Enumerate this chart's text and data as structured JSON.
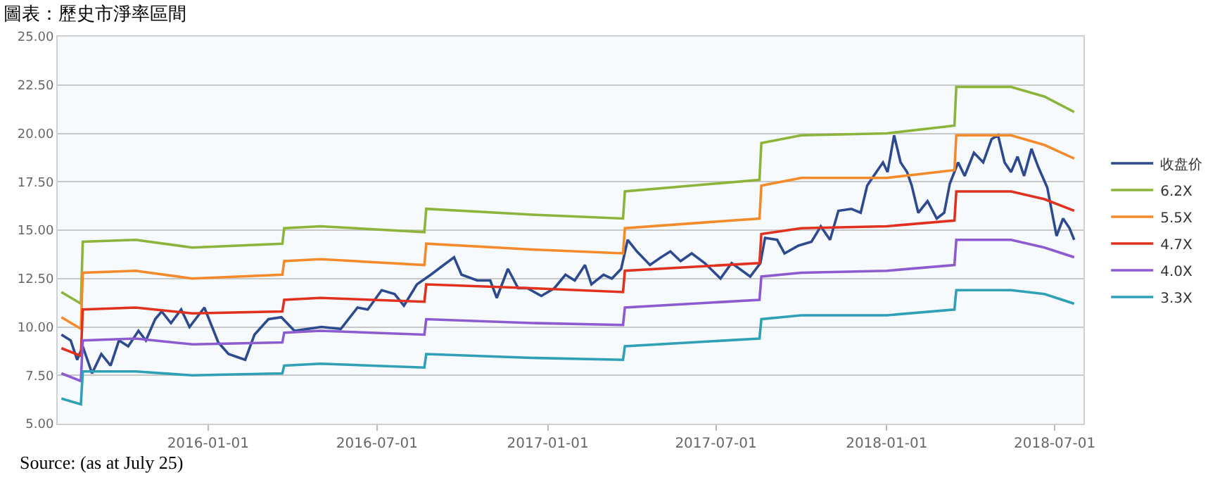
{
  "chart_data": {
    "type": "line",
    "title": "圖表：歷史市淨率區間",
    "xlim": [
      "2015-07-23",
      "2018-08-01"
    ],
    "xticks": [
      {
        "value": "2016-01-01",
        "label": "2016-01-01"
      },
      {
        "value": "2016-07-01",
        "label": "2016-07-01"
      },
      {
        "value": "2017-01-01",
        "label": "2017-01-01"
      },
      {
        "value": "2017-07-01",
        "label": "2017-07-01"
      },
      {
        "value": "2018-01-01",
        "label": "2018-01-01"
      },
      {
        "value": "2018-07-01",
        "label": "2018-07-01"
      }
    ],
    "ylim": [
      5,
      25
    ],
    "yticks": [
      {
        "value": 5,
        "label": "5.00"
      },
      {
        "value": 7.5,
        "label": "7.50"
      },
      {
        "value": 10,
        "label": "10.00"
      },
      {
        "value": 12.5,
        "label": "12.50"
      },
      {
        "value": 15,
        "label": "15.00"
      },
      {
        "value": 17.5,
        "label": "17.50"
      },
      {
        "value": 20,
        "label": "20.00"
      },
      {
        "value": 22.5,
        "label": "22.50"
      },
      {
        "value": 25,
        "label": "25.00"
      }
    ],
    "grid": "y",
    "legend": "right",
    "marker": "none",
    "line_style": "solid",
    "annotations": [
      "Source: (as at July 25)"
    ],
    "series": [
      {
        "name": "收盘价",
        "color": "#2e4a8f",
        "x": [
          "2015-07-27",
          "2015-08-06",
          "2015-08-13",
          "2015-08-19",
          "2015-08-29",
          "2015-09-08",
          "2015-09-18",
          "2015-09-27",
          "2015-10-07",
          "2015-10-18",
          "2015-10-26",
          "2015-11-05",
          "2015-11-12",
          "2015-11-22",
          "2015-12-03",
          "2015-12-12",
          "2015-12-28",
          "2016-01-12",
          "2016-01-23",
          "2016-02-10",
          "2016-02-20",
          "2016-03-06",
          "2016-03-20",
          "2016-04-03",
          "2016-05-02",
          "2016-05-23",
          "2016-06-10",
          "2016-06-21",
          "2016-07-06",
          "2016-07-20",
          "2016-07-30",
          "2016-08-13",
          "2016-08-28",
          "2016-09-08",
          "2016-09-22",
          "2016-09-30",
          "2016-10-17",
          "2016-10-31",
          "2016-11-07",
          "2016-11-19",
          "2016-11-30",
          "2016-12-10",
          "2016-12-25",
          "2017-01-08",
          "2017-01-20",
          "2017-01-30",
          "2017-02-10",
          "2017-02-17",
          "2017-03-02",
          "2017-03-11",
          "2017-03-21",
          "2017-03-28",
          "2017-04-07",
          "2017-04-21",
          "2017-05-03",
          "2017-05-13",
          "2017-05-24",
          "2017-06-05",
          "2017-06-19",
          "2017-07-06",
          "2017-07-18",
          "2017-08-07",
          "2017-08-18",
          "2017-08-23",
          "2017-09-05",
          "2017-09-13",
          "2017-09-28",
          "2017-10-12",
          "2017-10-22",
          "2017-11-01",
          "2017-11-10",
          "2017-11-24",
          "2017-12-04",
          "2017-12-11",
          "2017-12-18",
          "2017-12-28",
          "2018-01-02",
          "2018-01-09",
          "2018-01-16",
          "2018-01-23",
          "2018-01-28",
          "2018-02-04",
          "2018-02-14",
          "2018-02-24",
          "2018-03-04",
          "2018-03-10",
          "2018-03-19",
          "2018-03-26",
          "2018-04-05",
          "2018-04-15",
          "2018-04-24",
          "2018-05-01",
          "2018-05-08",
          "2018-05-15",
          "2018-05-22",
          "2018-05-29",
          "2018-06-06",
          "2018-06-13",
          "2018-06-23",
          "2018-07-03",
          "2018-07-10",
          "2018-07-17",
          "2018-07-22"
        ],
        "values": [
          9.6,
          9.3,
          8.3,
          9.0,
          7.6,
          8.6,
          8.0,
          9.3,
          9.0,
          9.8,
          9.3,
          10.4,
          10.8,
          10.2,
          10.9,
          10.0,
          11.0,
          9.2,
          8.6,
          8.3,
          9.6,
          10.4,
          10.5,
          9.8,
          10.0,
          9.9,
          11.0,
          10.9,
          11.9,
          11.7,
          11.1,
          12.2,
          12.7,
          13.1,
          13.6,
          12.7,
          12.4,
          12.4,
          11.5,
          13.0,
          12.0,
          12.0,
          11.6,
          12.0,
          12.7,
          12.4,
          13.2,
          12.2,
          12.7,
          12.5,
          13.0,
          14.5,
          13.9,
          13.2,
          13.6,
          13.9,
          13.4,
          13.8,
          13.3,
          12.5,
          13.3,
          12.6,
          13.3,
          14.6,
          14.5,
          13.8,
          14.2,
          14.4,
          15.2,
          14.5,
          16.0,
          16.1,
          15.9,
          17.3,
          17.8,
          18.5,
          18.0,
          19.9,
          18.5,
          18.0,
          17.3,
          15.9,
          16.5,
          15.6,
          15.9,
          17.4,
          18.5,
          17.8,
          19.0,
          18.5,
          19.7,
          19.9,
          18.5,
          18.0,
          18.8,
          17.8,
          19.2,
          18.3,
          17.2,
          14.7,
          15.6,
          15.1,
          14.5
        ]
      },
      {
        "name": "6.2X",
        "color": "#8db43a",
        "x": [
          "2015-07-27",
          "2015-08-17",
          "2015-08-19",
          "2015-10-15",
          "2015-12-15",
          "2016-03-21",
          "2016-03-23",
          "2016-05-01",
          "2016-08-21",
          "2016-08-23",
          "2016-12-15",
          "2017-03-23",
          "2017-03-25",
          "2017-08-17",
          "2017-08-19",
          "2017-10-01",
          "2018-01-01",
          "2018-03-15",
          "2018-03-17",
          "2018-05-15",
          "2018-06-20",
          "2018-07-22"
        ],
        "values": [
          11.8,
          11.2,
          14.4,
          14.5,
          14.1,
          14.3,
          15.1,
          15.2,
          14.9,
          16.1,
          15.8,
          15.6,
          17.0,
          17.6,
          19.5,
          19.9,
          20.0,
          20.4,
          22.4,
          22.4,
          21.9,
          21.1
        ]
      },
      {
        "name": "5.5X",
        "color": "#f58a2a",
        "x": [
          "2015-07-27",
          "2015-08-17",
          "2015-08-19",
          "2015-10-15",
          "2015-12-15",
          "2016-03-21",
          "2016-03-23",
          "2016-05-01",
          "2016-08-21",
          "2016-08-23",
          "2016-12-15",
          "2017-03-23",
          "2017-03-25",
          "2017-08-17",
          "2017-08-19",
          "2017-10-01",
          "2018-01-01",
          "2018-03-15",
          "2018-03-17",
          "2018-05-15",
          "2018-06-20",
          "2018-07-22"
        ],
        "values": [
          10.5,
          9.9,
          12.8,
          12.9,
          12.5,
          12.7,
          13.4,
          13.5,
          13.2,
          14.3,
          14.0,
          13.8,
          15.1,
          15.6,
          17.3,
          17.7,
          17.7,
          18.1,
          19.9,
          19.9,
          19.4,
          18.7
        ]
      },
      {
        "name": "4.7X",
        "color": "#e0301e",
        "x": [
          "2015-07-27",
          "2015-08-17",
          "2015-08-19",
          "2015-10-15",
          "2015-12-15",
          "2016-03-21",
          "2016-03-23",
          "2016-05-01",
          "2016-08-21",
          "2016-08-23",
          "2016-12-15",
          "2017-03-23",
          "2017-03-25",
          "2017-08-17",
          "2017-08-19",
          "2017-10-01",
          "2018-01-01",
          "2018-03-15",
          "2018-03-17",
          "2018-05-15",
          "2018-06-20",
          "2018-07-22"
        ],
        "values": [
          8.9,
          8.5,
          10.9,
          11.0,
          10.7,
          10.8,
          11.4,
          11.5,
          11.3,
          12.2,
          12.0,
          11.8,
          12.9,
          13.3,
          14.8,
          15.1,
          15.2,
          15.5,
          17.0,
          17.0,
          16.6,
          16.0
        ]
      },
      {
        "name": "4.0X",
        "color": "#8c5bd0",
        "x": [
          "2015-07-27",
          "2015-08-17",
          "2015-08-19",
          "2015-10-15",
          "2015-12-15",
          "2016-03-21",
          "2016-03-23",
          "2016-05-01",
          "2016-08-21",
          "2016-08-23",
          "2016-12-15",
          "2017-03-23",
          "2017-03-25",
          "2017-08-17",
          "2017-08-19",
          "2017-10-01",
          "2018-01-01",
          "2018-03-15",
          "2018-03-17",
          "2018-05-15",
          "2018-06-20",
          "2018-07-22"
        ],
        "values": [
          7.6,
          7.2,
          9.3,
          9.4,
          9.1,
          9.2,
          9.7,
          9.8,
          9.6,
          10.4,
          10.2,
          10.1,
          11.0,
          11.4,
          12.6,
          12.8,
          12.9,
          13.2,
          14.5,
          14.5,
          14.1,
          13.6
        ]
      },
      {
        "name": "3.3X",
        "color": "#2fa0b5",
        "x": [
          "2015-07-27",
          "2015-08-17",
          "2015-08-19",
          "2015-10-15",
          "2015-12-15",
          "2016-03-21",
          "2016-03-23",
          "2016-05-01",
          "2016-08-21",
          "2016-08-23",
          "2016-12-15",
          "2017-03-23",
          "2017-03-25",
          "2017-08-17",
          "2017-08-19",
          "2017-10-01",
          "2018-01-01",
          "2018-03-15",
          "2018-03-17",
          "2018-05-15",
          "2018-06-20",
          "2018-07-22"
        ],
        "values": [
          6.3,
          6.0,
          7.7,
          7.7,
          7.5,
          7.6,
          8.0,
          8.1,
          7.9,
          8.6,
          8.4,
          8.3,
          9.0,
          9.4,
          10.4,
          10.6,
          10.6,
          10.9,
          11.9,
          11.9,
          11.7,
          11.2
        ]
      }
    ]
  }
}
